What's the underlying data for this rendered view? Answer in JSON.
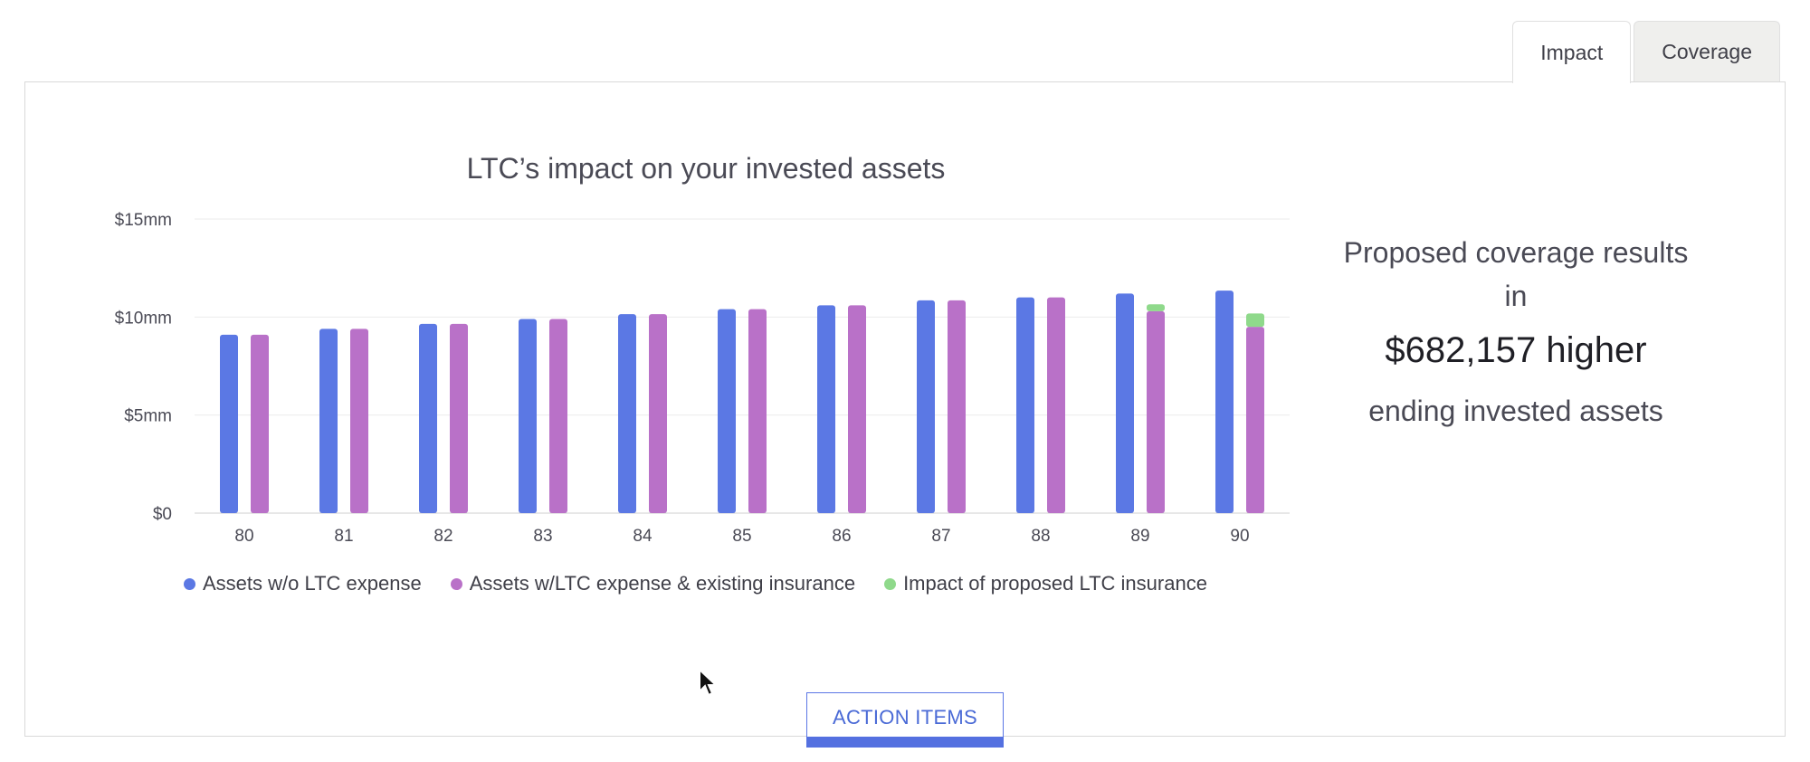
{
  "tabs": [
    {
      "label": "Impact",
      "active": true
    },
    {
      "label": "Coverage",
      "active": false
    }
  ],
  "summary": {
    "line1": "Proposed coverage results",
    "line2": "in",
    "amount": "$682,157 higher",
    "line3": "ending invested assets"
  },
  "action_button": {
    "label": "ACTION ITEMS"
  },
  "colors": {
    "series_blue": "#5b78e4",
    "series_purple": "#b971c8",
    "series_green": "#8fd98b"
  },
  "chart_data": {
    "type": "bar",
    "title": "LTC’s impact on your invested assets",
    "xlabel": "",
    "ylabel": "",
    "categories": [
      "80",
      "81",
      "82",
      "83",
      "84",
      "85",
      "86",
      "87",
      "88",
      "89",
      "90"
    ],
    "ylim": [
      0,
      15
    ],
    "yticks": [
      {
        "value": 0,
        "label": "$0"
      },
      {
        "value": 5,
        "label": "$5mm"
      },
      {
        "value": 10,
        "label": "$10mm"
      },
      {
        "value": 15,
        "label": "$15mm"
      }
    ],
    "grid": true,
    "legend_position": "bottom",
    "series": [
      {
        "name": "Assets w/o LTC expense",
        "color": "#5b78e4",
        "values": [
          9.1,
          9.4,
          9.65,
          9.9,
          10.15,
          10.4,
          10.6,
          10.85,
          11.0,
          11.2,
          11.35
        ]
      },
      {
        "name": "Assets w/LTC expense & existing insurance",
        "color": "#b971c8",
        "values": [
          9.1,
          9.4,
          9.65,
          9.9,
          10.15,
          10.4,
          10.6,
          10.85,
          11.0,
          10.3,
          9.5
        ]
      },
      {
        "name": "Impact of proposed LTC insurance",
        "color": "#8fd98b",
        "values": [
          0,
          0,
          0,
          0,
          0,
          0,
          0,
          0,
          0,
          0.35,
          0.68
        ]
      }
    ]
  }
}
